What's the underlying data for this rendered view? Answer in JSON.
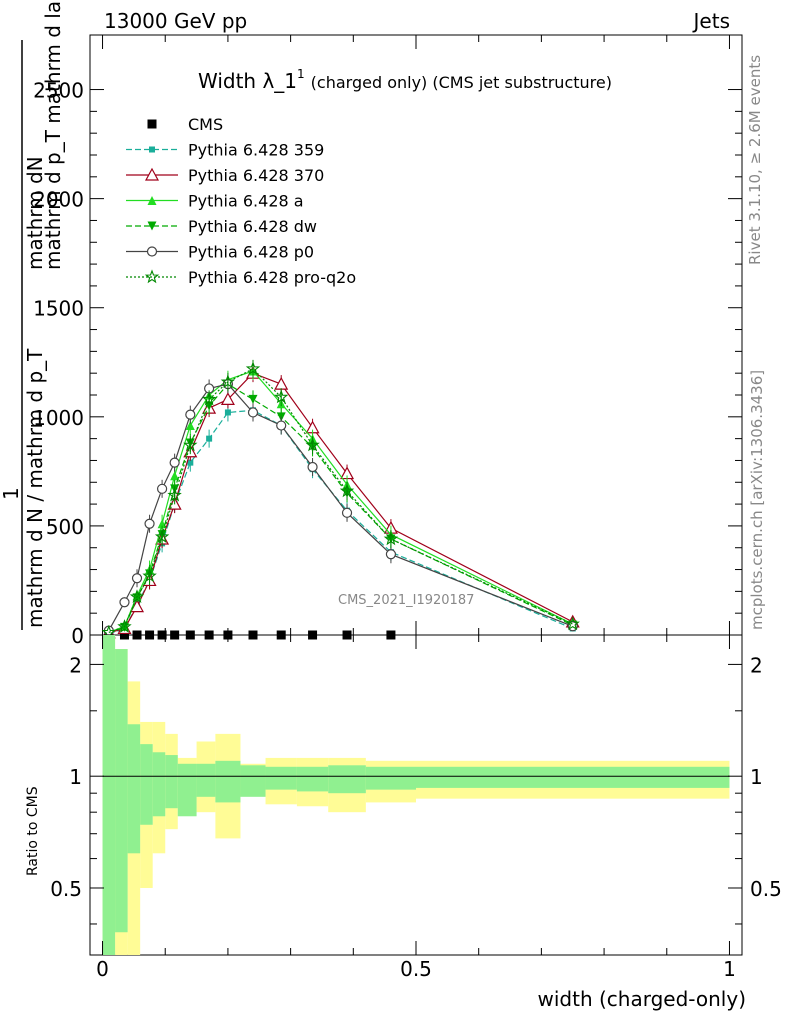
{
  "header": {
    "left": "13000 GeV pp",
    "right": "Jets"
  },
  "side_labels": {
    "rivet": "Rivet 3.1.10, ≥ 2.6M events",
    "mcplots": "mcplots.cern.ch [arXiv:1306.3436]"
  },
  "chart_data": [
    {
      "type": "line",
      "title": "Width λ_1",
      "title_sup": "1",
      "subtitle": "(charged only) (CMS jet substructure)",
      "ylabel_num": "mathrm dN",
      "ylabel_num_sub": "mathrm d p_T mathrm d lambda",
      "ylabel_den": "mathrm d N / mathrm d p_T",
      "ylabel_one": "1",
      "watermark": "CMS_2021_I1920187",
      "xlim": [
        -0.02,
        1.02
      ],
      "ylim": [
        0,
        2750
      ],
      "yticks": [
        0,
        500,
        1000,
        1500,
        2000,
        2500
      ],
      "ytick_labels": [
        "0",
        "500",
        "1000",
        "1500",
        "2000",
        "2500"
      ],
      "legend_position": "top-left",
      "x": [
        0.01,
        0.035,
        0.055,
        0.075,
        0.095,
        0.115,
        0.14,
        0.17,
        0.2,
        0.24,
        0.285,
        0.335,
        0.39,
        0.46,
        0.75
      ],
      "series": [
        {
          "name": "CMS",
          "color": "#000000",
          "marker": "square-filled",
          "dash": "none",
          "values": [
            0,
            0,
            0,
            0,
            0,
            0,
            0,
            0,
            0,
            0,
            0,
            0,
            0,
            0,
            null
          ]
        },
        {
          "name": "Pythia 6.428 359",
          "color": "#1aae9a",
          "marker": "square-small",
          "dash": "6,3",
          "values": [
            8,
            25,
            140,
            250,
            420,
            600,
            790,
            900,
            1020,
            1030,
            960,
            760,
            570,
            380,
            30
          ]
        },
        {
          "name": "Pythia 6.428 370",
          "color": "#a0001a",
          "marker": "triangle-open",
          "dash": "none",
          "values": [
            10,
            30,
            130,
            250,
            440,
            600,
            840,
            1040,
            1080,
            1200,
            1150,
            950,
            740,
            490,
            60
          ]
        },
        {
          "name": "Pythia 6.428 a",
          "color": "#22dd22",
          "marker": "triangle-filled",
          "dash": "none",
          "values": [
            12,
            40,
            180,
            300,
            510,
            730,
            960,
            1100,
            1170,
            1210,
            1060,
            900,
            690,
            460,
            50
          ]
        },
        {
          "name": "Pythia 6.428 dw",
          "color": "#00aa00",
          "marker": "triangle-down-filled",
          "dash": "6,3",
          "values": [
            10,
            35,
            170,
            280,
            460,
            670,
            880,
            1050,
            1150,
            1080,
            1000,
            860,
            650,
            440,
            45
          ]
        },
        {
          "name": "Pythia 6.428 p0",
          "color": "#444444",
          "marker": "circle-open",
          "dash": "none",
          "values": [
            20,
            150,
            260,
            510,
            670,
            790,
            1010,
            1130,
            1150,
            1020,
            960,
            770,
            560,
            370,
            40
          ]
        },
        {
          "name": "Pythia 6.428 pro-q2o",
          "color": "#008800",
          "marker": "star-open",
          "dash": "2,2",
          "values": [
            12,
            38,
            175,
            270,
            450,
            640,
            870,
            1080,
            1160,
            1220,
            1090,
            870,
            660,
            440,
            50
          ]
        }
      ]
    },
    {
      "type": "area",
      "ylabel": "Ratio to CMS",
      "xlabel": "width (charged-only)",
      "xticks": [
        0,
        0.5,
        1
      ],
      "xtick_labels": [
        "0",
        "0.5",
        "1"
      ],
      "yticks": [
        0.5,
        1,
        2
      ],
      "ytick_labels": [
        "0.5",
        "1",
        "2"
      ],
      "ylim": [
        0.33,
        2.4
      ],
      "scale": "log",
      "bin_edges": [
        0.0,
        0.02,
        0.04,
        0.06,
        0.08,
        0.1,
        0.12,
        0.15,
        0.18,
        0.22,
        0.26,
        0.31,
        0.36,
        0.42,
        0.5,
        1.0
      ],
      "inner_band": {
        "name": "stat",
        "color": "#90f090",
        "lo": [
          0.2,
          0.38,
          0.62,
          0.74,
          0.78,
          0.82,
          0.78,
          0.88,
          0.85,
          0.88,
          0.92,
          0.91,
          0.9,
          0.92,
          0.93
        ],
        "hi": [
          5.0,
          2.2,
          1.38,
          1.22,
          1.16,
          1.14,
          1.08,
          1.08,
          1.1,
          1.07,
          1.06,
          1.06,
          1.07,
          1.06,
          1.06
        ]
      },
      "outer_band": {
        "name": "total",
        "color": "#fffc96",
        "lo": [
          0.1,
          0.2,
          0.33,
          0.5,
          0.62,
          0.72,
          0.82,
          0.8,
          0.68,
          0.94,
          0.84,
          0.83,
          0.8,
          0.85,
          0.87
        ],
        "hi": [
          9.0,
          2.2,
          1.8,
          1.4,
          1.4,
          1.3,
          1.12,
          1.24,
          1.3,
          1.08,
          1.12,
          1.12,
          1.12,
          1.1,
          1.1
        ]
      }
    }
  ]
}
